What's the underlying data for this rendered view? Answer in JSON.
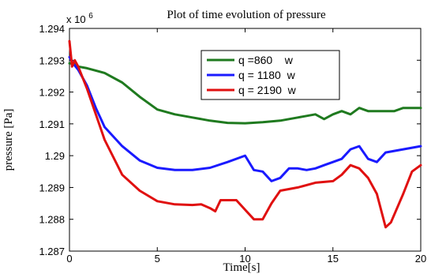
{
  "chart_data": {
    "type": "line",
    "title": "Plot of time evolution of pressure",
    "xlabel": "Time[s]",
    "ylabel": "pressure [Pa]",
    "y_multiplier_label": "x 10",
    "y_multiplier_exponent": "6",
    "xlim": [
      0,
      20
    ],
    "ylim": [
      1.287,
      1.294
    ],
    "x_ticks": [
      "0",
      "5",
      "10",
      "15",
      "20"
    ],
    "y_ticks": [
      "1.287",
      "1.288",
      "1.289",
      "1.29",
      "1.291",
      "1.292",
      "1.293",
      "1.294"
    ],
    "grid": false,
    "legend_position": "top-right",
    "series": [
      {
        "name": "q =860    w",
        "color": "#1f7a1f",
        "x": [
          0,
          0.2,
          0.5,
          1,
          2,
          3,
          4,
          5,
          6,
          7,
          8,
          9,
          10,
          11,
          12,
          13,
          13.5,
          14,
          14.5,
          15,
          15.5,
          16,
          16.5,
          17,
          17.5,
          18,
          18.5,
          19,
          19.5,
          20
        ],
        "y": [
          1.2929,
          1.2929,
          1.2928,
          1.29275,
          1.2926,
          1.2923,
          1.29185,
          1.29145,
          1.2913,
          1.2912,
          1.2911,
          1.29103,
          1.29102,
          1.29105,
          1.2911,
          1.2912,
          1.29125,
          1.2913,
          1.29115,
          1.2913,
          1.2914,
          1.2913,
          1.2915,
          1.2914,
          1.2914,
          1.2914,
          1.2914,
          1.2915,
          1.2915,
          1.2915
        ]
      },
      {
        "name": "q = 1180  w",
        "color": "#1a1aff",
        "x": [
          0,
          0.2,
          0.5,
          1,
          1.5,
          2,
          3,
          4,
          5,
          6,
          7,
          8,
          9,
          10,
          10.5,
          11,
          11.5,
          12,
          12.5,
          13,
          13.5,
          14,
          14.5,
          15,
          15.5,
          16,
          16.5,
          17,
          17.5,
          18,
          19,
          20
        ],
        "y": [
          1.2931,
          1.2929,
          1.2927,
          1.2922,
          1.2915,
          1.2909,
          1.2903,
          1.28985,
          1.28962,
          1.28955,
          1.28955,
          1.28962,
          1.2898,
          1.29,
          1.28955,
          1.2895,
          1.2892,
          1.2893,
          1.2896,
          1.2896,
          1.28955,
          1.2896,
          1.2897,
          1.2898,
          1.2899,
          1.2902,
          1.2903,
          1.2899,
          1.2898,
          1.2901,
          1.2902,
          1.2903
        ]
      },
      {
        "name": "q = 2190  w",
        "color": "#e01010",
        "x": [
          0,
          0.15,
          0.3,
          0.5,
          1,
          1.5,
          2,
          3,
          4,
          5,
          6,
          7,
          7.5,
          8,
          8.3,
          8.6,
          9,
          9.5,
          10,
          10.5,
          11,
          11.5,
          12,
          13,
          14,
          15,
          15.5,
          16,
          16.5,
          17,
          17.5,
          18,
          18.3,
          19,
          19.5,
          20
        ],
        "y": [
          1.2936,
          1.2928,
          1.293,
          1.2928,
          1.2921,
          1.2913,
          1.2905,
          1.2894,
          1.2889,
          1.28857,
          1.28847,
          1.28845,
          1.28847,
          1.28835,
          1.28825,
          1.2886,
          1.2886,
          1.2886,
          1.2883,
          1.288,
          1.288,
          1.2885,
          1.2889,
          1.289,
          1.28915,
          1.2892,
          1.2894,
          1.2897,
          1.2896,
          1.2893,
          1.2888,
          1.28775,
          1.2879,
          1.2888,
          1.2895,
          1.2897
        ]
      }
    ]
  }
}
